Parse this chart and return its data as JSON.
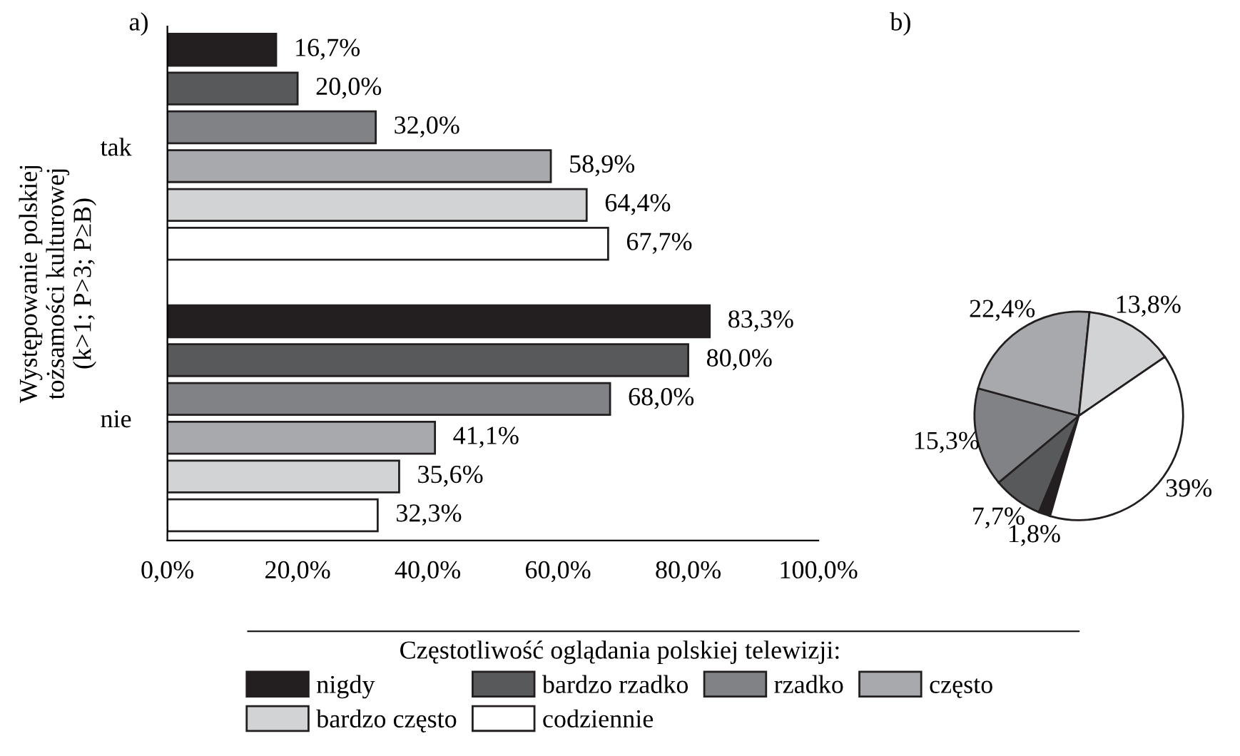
{
  "chart_data": [
    {
      "type": "bar",
      "orientation": "horizontal",
      "annotations": [
        "a)"
      ],
      "ylabel": "Występowanie polskiej\ntożsamości kulturowej\n(k>1; P>3; P≥B)",
      "categories": [
        "tak",
        "nie"
      ],
      "xlim": [
        0,
        100
      ],
      "xticks": [
        {
          "value": 0,
          "label": "0,0%"
        },
        {
          "value": 20,
          "label": "20,0%"
        },
        {
          "value": 40,
          "label": "40,0%"
        },
        {
          "value": 60,
          "label": "60,0%"
        },
        {
          "value": 80,
          "label": "80,0%"
        },
        {
          "value": 100,
          "label": "100,0%"
        }
      ],
      "grid": false,
      "legend": "bottom",
      "legend_title": "Częstotliwość oglądania polskiej telewizji:",
      "series": [
        {
          "name": "nigdy",
          "color": "#231f20",
          "values": [
            16.7,
            83.3
          ],
          "value_labels": [
            "16,7%",
            "83,3%"
          ]
        },
        {
          "name": "bardzo rzadko",
          "color": "#58595b",
          "values": [
            20.0,
            80.0
          ],
          "value_labels": [
            "20,0%",
            "80,0%"
          ]
        },
        {
          "name": "rzadko",
          "color": "#808285",
          "values": [
            32.0,
            68.0
          ],
          "value_labels": [
            "32,0%",
            "68,0%"
          ]
        },
        {
          "name": "często",
          "color": "#a7a9ac",
          "values": [
            58.9,
            41.1
          ],
          "value_labels": [
            "58,9%",
            "41,1%"
          ]
        },
        {
          "name": "bardzo często",
          "color": "#d1d3d4",
          "values": [
            64.4,
            35.6
          ],
          "value_labels": [
            "64,4%",
            "35,6%"
          ]
        },
        {
          "name": "codziennie",
          "color": "#ffffff",
          "values": [
            67.7,
            32.3
          ],
          "value_labels": [
            "67,7%",
            "32,3%"
          ]
        }
      ]
    },
    {
      "type": "pie",
      "annotations": [
        "b)"
      ],
      "categories": [
        null,
        null,
        null,
        null,
        null,
        null
      ],
      "values": [
        1.8,
        7.7,
        15.3,
        22.4,
        13.8,
        39
      ],
      "value_labels": [
        "1,8%",
        "7,7%",
        "15,3%",
        "22,4%",
        "13,8%",
        "39%"
      ],
      "colors": [
        "#231f20",
        "#58595b",
        "#808285",
        "#a7a9ac",
        "#d1d3d4",
        "#ffffff"
      ]
    }
  ]
}
